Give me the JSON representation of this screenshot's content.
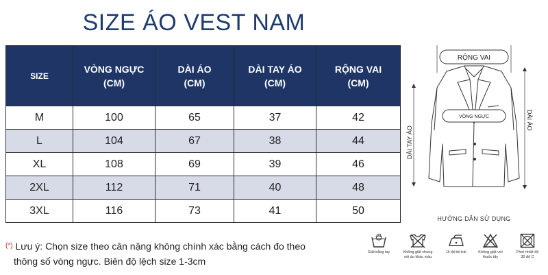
{
  "title": "SIZE ÁO VEST NAM",
  "table": {
    "headers": [
      "SIZE",
      "VÒNG NGỰC\n(CM)",
      "DÀI ÁO\n(CM)",
      "DÀI TAY ÁO\n(CM)",
      "RỘNG VAI\n(CM)"
    ],
    "rows": [
      [
        "M",
        "100",
        "65",
        "37",
        "42"
      ],
      [
        "L",
        "104",
        "67",
        "38",
        "44"
      ],
      [
        "XL",
        "108",
        "69",
        "39",
        "46"
      ],
      [
        "2XL",
        "112",
        "71",
        "40",
        "48"
      ],
      [
        "3XL",
        "116",
        "73",
        "41",
        "50"
      ]
    ],
    "colors": {
      "header_bg": "#1e3566",
      "shade_row": "#d6dbe7"
    }
  },
  "diagram": {
    "shoulder_label": "RỘNG VAI",
    "chest_label": "VÒNG NGỰC",
    "sleeve_label": "DÀI TAY ÁO",
    "length_label": "DÀI ÁO"
  },
  "note": {
    "marker": "(*)",
    "line1": "Lưu ý: Chọn size theo cân nặng không chính xác bằng cách đo theo",
    "line2": "thông số vòng ngực. Biên độ lệch size 1-3cm"
  },
  "care": {
    "title": "HƯỚNG DẪN SỬ DỤNG",
    "items": [
      {
        "icon": "hand-wash-icon",
        "label": "Giặt bằng tay"
      },
      {
        "icon": "no-mixed-wash-icon",
        "label": "Không giặt chung\nvới áo khác màu"
      },
      {
        "icon": "iron-icon",
        "label": "Ủi lật bề trái"
      },
      {
        "icon": "no-bleach-icon",
        "label": "Không giặt với\nthuốc tẩy"
      },
      {
        "icon": "dry-shade-icon",
        "label": "Phơi nhiệt độ\n30 độ C"
      }
    ]
  }
}
